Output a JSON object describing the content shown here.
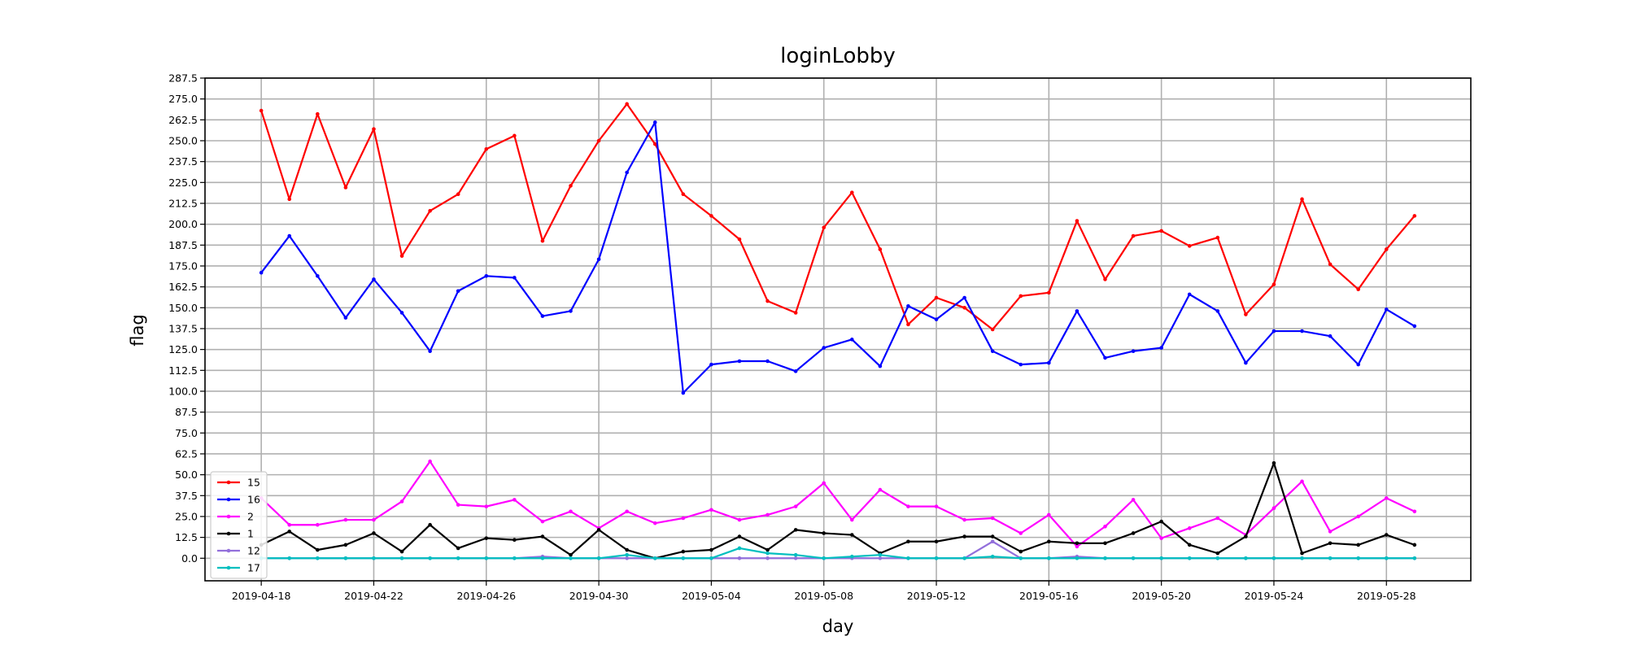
{
  "chart_data": {
    "type": "line",
    "title": "loginLobby",
    "xlabel": "day",
    "ylabel": "flag",
    "x": [
      "2019-04-18",
      "2019-04-19",
      "2019-04-20",
      "2019-04-21",
      "2019-04-22",
      "2019-04-23",
      "2019-04-24",
      "2019-04-25",
      "2019-04-26",
      "2019-04-27",
      "2019-04-28",
      "2019-04-29",
      "2019-04-30",
      "2019-05-01",
      "2019-05-02",
      "2019-05-03",
      "2019-05-04",
      "2019-05-05",
      "2019-05-06",
      "2019-05-07",
      "2019-05-08",
      "2019-05-09",
      "2019-05-10",
      "2019-05-11",
      "2019-05-12",
      "2019-05-13",
      "2019-05-14",
      "2019-05-15",
      "2019-05-16",
      "2019-05-17",
      "2019-05-18",
      "2019-05-19",
      "2019-05-20",
      "2019-05-21",
      "2019-05-22",
      "2019-05-23",
      "2019-05-24",
      "2019-05-25",
      "2019-05-26",
      "2019-05-27",
      "2019-05-28",
      "2019-05-29"
    ],
    "xticks": [
      "2019-04-18",
      "2019-04-22",
      "2019-04-26",
      "2019-04-30",
      "2019-05-04",
      "2019-05-08",
      "2019-05-12",
      "2019-05-16",
      "2019-05-20",
      "2019-05-24",
      "2019-05-28"
    ],
    "xlim": [
      "2019-04-16",
      "2019-05-31"
    ],
    "yticks": [
      "0.0",
      "12.5",
      "25.0",
      "37.5",
      "50.0",
      "62.5",
      "75.0",
      "87.5",
      "100.0",
      "112.5",
      "125.0",
      "137.5",
      "150.0",
      "162.5",
      "175.0",
      "187.5",
      "200.0",
      "212.5",
      "225.0",
      "237.5",
      "250.0",
      "262.5",
      "275.0",
      "287.5"
    ],
    "ylim": [
      -13.5,
      287.5
    ],
    "grid": true,
    "legend_position": "lower-left",
    "series": [
      {
        "name": "15",
        "color": "#ff0000",
        "values": [
          268,
          215,
          266,
          222,
          257,
          181,
          208,
          218,
          245,
          253,
          190,
          223,
          250,
          272,
          248,
          218,
          205,
          191,
          154,
          147,
          198,
          219,
          185,
          140,
          156,
          150,
          137,
          157,
          159,
          202,
          167,
          193,
          196,
          187,
          192,
          146,
          164,
          215,
          176,
          161,
          185,
          205
        ]
      },
      {
        "name": "16",
        "color": "#0000ff",
        "values": [
          171,
          193,
          169,
          144,
          167,
          147,
          124,
          160,
          169,
          168,
          145,
          148,
          179,
          231,
          261,
          99,
          116,
          118,
          118,
          112,
          126,
          131,
          115,
          151,
          143,
          156,
          124,
          116,
          117,
          148,
          120,
          124,
          126,
          158,
          148,
          117,
          136,
          136,
          133,
          116,
          149,
          139
        ]
      },
      {
        "name": "2",
        "color": "#ff00ff",
        "values": [
          36,
          20,
          20,
          23,
          23,
          34,
          58,
          32,
          31,
          35,
          22,
          28,
          18,
          28,
          21,
          24,
          29,
          23,
          26,
          31,
          45,
          23,
          41,
          31,
          31,
          23,
          24,
          15,
          26,
          7,
          19,
          35,
          12,
          18,
          24,
          14,
          30,
          46,
          16,
          25,
          36,
          28
        ]
      },
      {
        "name": "1",
        "color": "#000000",
        "values": [
          8,
          16,
          5,
          8,
          15,
          4,
          20,
          6,
          12,
          11,
          13,
          2,
          17,
          5,
          0,
          4,
          5,
          13,
          5,
          17,
          15,
          14,
          3,
          10,
          10,
          13,
          13,
          4,
          10,
          9,
          9,
          15,
          22,
          8,
          3,
          13,
          57,
          3,
          9,
          8,
          14,
          8
        ]
      },
      {
        "name": "12",
        "color": "#9370db",
        "values": [
          0,
          0,
          0,
          0,
          0,
          0,
          0,
          0,
          0,
          0,
          1,
          0,
          0,
          0,
          0,
          0,
          0,
          0,
          0,
          0,
          0,
          0,
          0,
          0,
          0,
          0,
          10,
          0,
          0,
          1,
          0,
          0,
          0,
          0,
          0,
          0,
          0,
          0,
          0,
          0,
          0,
          0
        ]
      },
      {
        "name": "17",
        "color": "#00bfbf",
        "values": [
          0,
          0,
          0,
          0,
          0,
          0,
          0,
          0,
          0,
          0,
          0,
          0,
          0,
          2,
          0,
          0,
          0,
          6,
          3,
          2,
          0,
          1,
          2,
          0,
          0,
          0,
          1,
          0,
          0,
          0,
          0,
          0,
          0,
          0,
          0,
          0,
          0,
          0,
          0,
          0,
          0,
          0
        ]
      }
    ]
  }
}
